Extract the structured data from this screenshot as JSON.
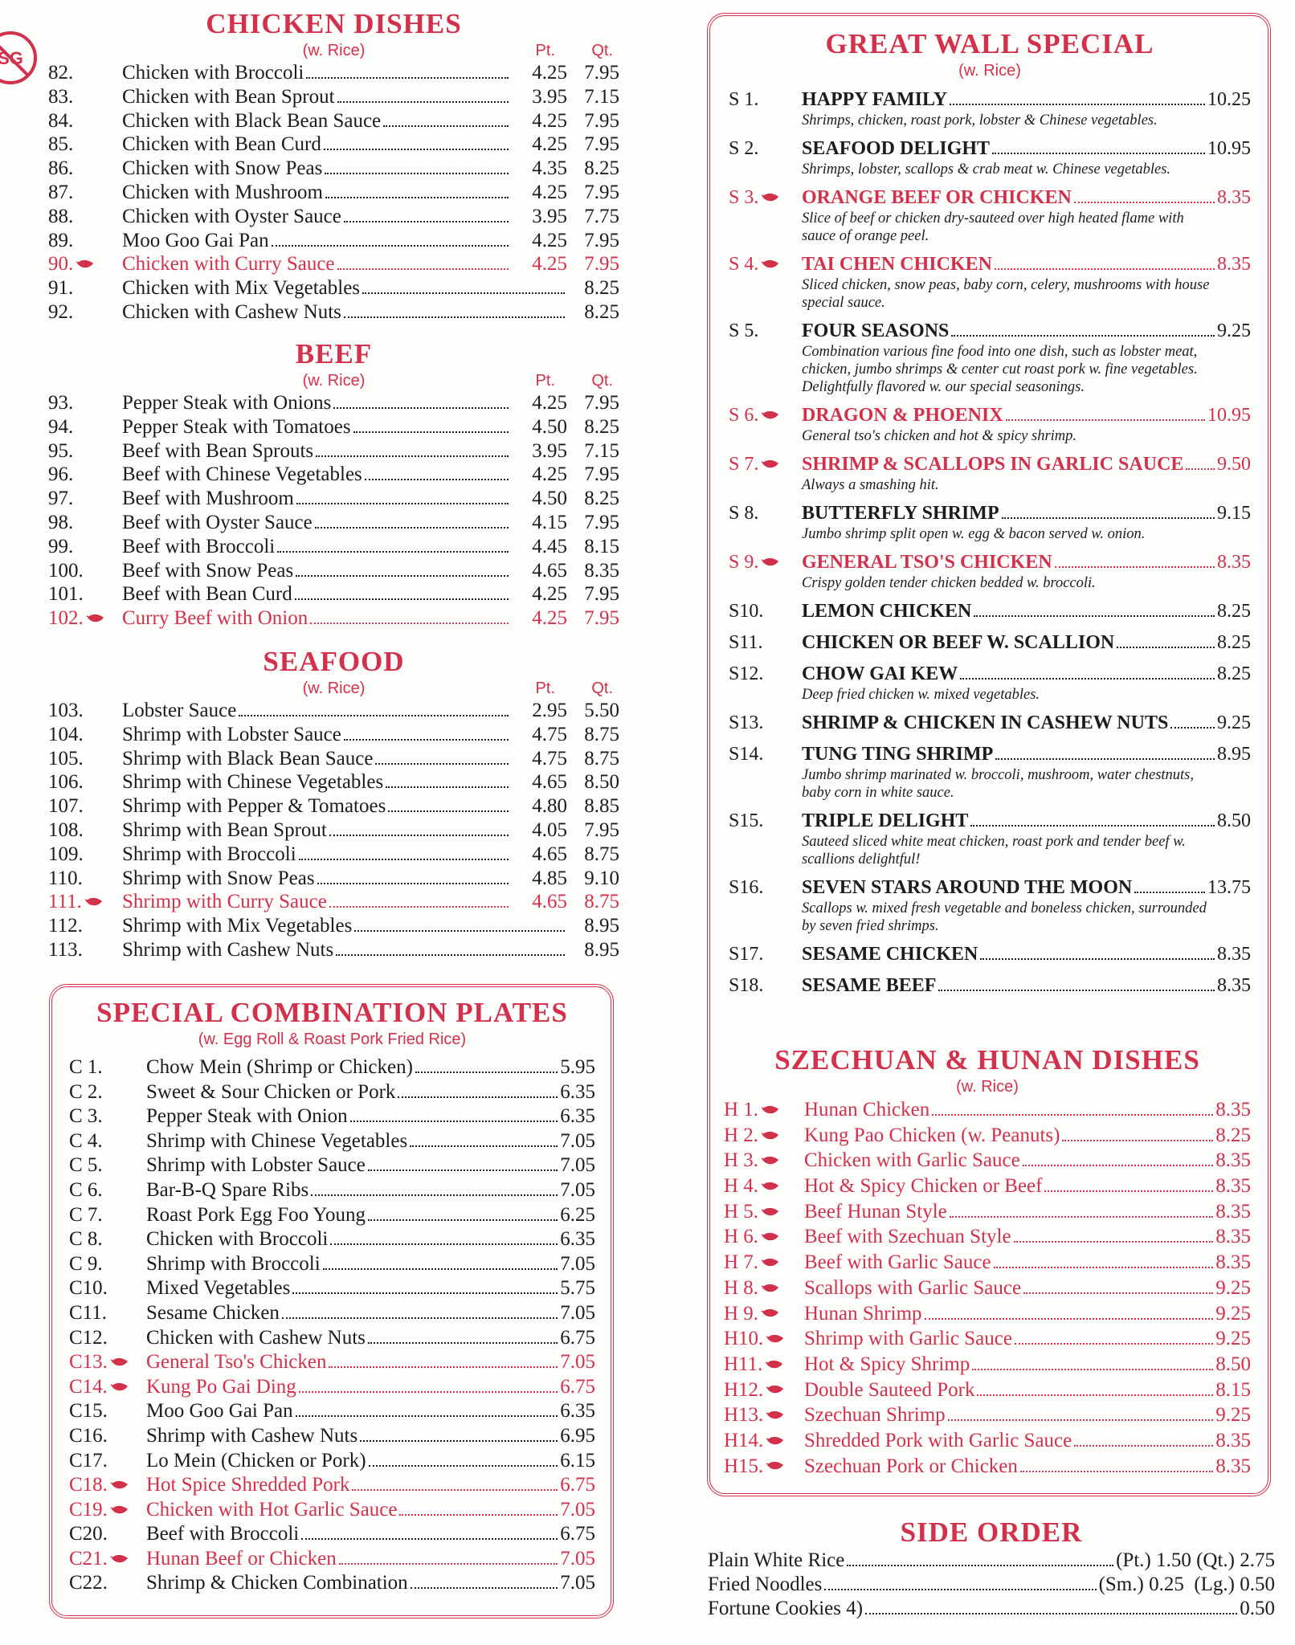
{
  "logo": "SG",
  "left": [
    {
      "title": "CHICKEN DISHES",
      "note": "(w. Rice)",
      "headers": [
        "Pt.",
        "Qt."
      ],
      "items": [
        {
          "num": "82.",
          "name": "Chicken with Broccoli",
          "prices": [
            "4.25",
            "7.95"
          ]
        },
        {
          "num": "83.",
          "name": "Chicken with Bean Sprout",
          "prices": [
            "3.95",
            "7.15"
          ]
        },
        {
          "num": "84.",
          "name": "Chicken with Black Bean Sauce",
          "prices": [
            "4.25",
            "7.95"
          ]
        },
        {
          "num": "85.",
          "name": "Chicken with Bean Curd",
          "prices": [
            "4.25",
            "7.95"
          ]
        },
        {
          "num": "86.",
          "name": "Chicken with Snow Peas",
          "prices": [
            "4.35",
            "8.25"
          ]
        },
        {
          "num": "87.",
          "name": "Chicken with Mushroom",
          "prices": [
            "4.25",
            "7.95"
          ]
        },
        {
          "num": "88.",
          "name": "Chicken with Oyster Sauce",
          "prices": [
            "3.95",
            "7.75"
          ]
        },
        {
          "num": "89.",
          "name": "Moo Goo Gai Pan",
          "prices": [
            "4.25",
            "7.95"
          ]
        },
        {
          "num": "90.",
          "name": "Chicken with Curry Sauce",
          "prices": [
            "4.25",
            "7.95"
          ],
          "spicy": true
        },
        {
          "num": "91.",
          "name": "Chicken with Mix Vegetables",
          "prices": [
            "8.25"
          ]
        },
        {
          "num": "92.",
          "name": "Chicken with Cashew Nuts",
          "prices": [
            "8.25"
          ]
        }
      ]
    },
    {
      "title": "BEEF",
      "note": "(w. Rice)",
      "headers": [
        "Pt.",
        "Qt."
      ],
      "items": [
        {
          "num": "93.",
          "name": "Pepper Steak with Onions",
          "prices": [
            "4.25",
            "7.95"
          ]
        },
        {
          "num": "94.",
          "name": "Pepper Steak with Tomatoes",
          "prices": [
            "4.50",
            "8.25"
          ]
        },
        {
          "num": "95.",
          "name": "Beef with Bean Sprouts",
          "prices": [
            "3.95",
            "7.15"
          ]
        },
        {
          "num": "96.",
          "name": "Beef with Chinese Vegetables",
          "prices": [
            "4.25",
            "7.95"
          ]
        },
        {
          "num": "97.",
          "name": "Beef with Mushroom",
          "prices": [
            "4.50",
            "8.25"
          ]
        },
        {
          "num": "98.",
          "name": "Beef with Oyster Sauce",
          "prices": [
            "4.15",
            "7.95"
          ]
        },
        {
          "num": "99.",
          "name": "Beef with Broccoli",
          "prices": [
            "4.45",
            "8.15"
          ]
        },
        {
          "num": "100.",
          "name": "Beef with Snow Peas",
          "prices": [
            "4.65",
            "8.35"
          ]
        },
        {
          "num": "101.",
          "name": "Beef with Bean Curd",
          "prices": [
            "4.25",
            "7.95"
          ]
        },
        {
          "num": "102.",
          "name": "Curry Beef with Onion",
          "prices": [
            "4.25",
            "7.95"
          ],
          "spicy": true
        }
      ]
    },
    {
      "title": "SEAFOOD",
      "note": "(w. Rice)",
      "headers": [
        "Pt.",
        "Qt."
      ],
      "items": [
        {
          "num": "103.",
          "name": "Lobster Sauce",
          "prices": [
            "2.95",
            "5.50"
          ]
        },
        {
          "num": "104.",
          "name": "Shrimp with Lobster Sauce",
          "prices": [
            "4.75",
            "8.75"
          ]
        },
        {
          "num": "105.",
          "name": "Shrimp with Black Bean Sauce",
          "prices": [
            "4.75",
            "8.75"
          ]
        },
        {
          "num": "106.",
          "name": "Shrimp with Chinese Vegetables",
          "prices": [
            "4.65",
            "8.50"
          ]
        },
        {
          "num": "107.",
          "name": "Shrimp with Pepper & Tomatoes",
          "prices": [
            "4.80",
            "8.85"
          ]
        },
        {
          "num": "108.",
          "name": "Shrimp with Bean Sprout",
          "prices": [
            "4.05",
            "7.95"
          ]
        },
        {
          "num": "109.",
          "name": "Shrimp with Broccoli",
          "prices": [
            "4.65",
            "8.75"
          ]
        },
        {
          "num": "110.",
          "name": "Shrimp with Snow Peas",
          "prices": [
            "4.85",
            "9.10"
          ]
        },
        {
          "num": "111.",
          "name": "Shrimp with Curry Sauce",
          "prices": [
            "4.65",
            "8.75"
          ],
          "spicy": true
        },
        {
          "num": "112.",
          "name": "Shrimp with Mix Vegetables",
          "prices": [
            "8.95"
          ]
        },
        {
          "num": "113.",
          "name": "Shrimp with Cashew Nuts",
          "prices": [
            "8.95"
          ]
        }
      ]
    }
  ],
  "combo": {
    "title": "SPECIAL COMBINATION PLATES",
    "note": "(w. Egg Roll & Roast Pork Fried Rice)",
    "items": [
      {
        "num": "C 1.",
        "name": "Chow Mein (Shrimp or Chicken)",
        "price": "5.95"
      },
      {
        "num": "C 2.",
        "name": "Sweet & Sour Chicken or Pork",
        "price": "6.35"
      },
      {
        "num": "C 3.",
        "name": "Pepper Steak with Onion",
        "price": "6.35"
      },
      {
        "num": "C 4.",
        "name": "Shrimp with Chinese Vegetables",
        "price": "7.05"
      },
      {
        "num": "C 5.",
        "name": "Shrimp with Lobster Sauce",
        "price": "7.05"
      },
      {
        "num": "C 6.",
        "name": "Bar-B-Q Spare Ribs",
        "price": "7.05"
      },
      {
        "num": "C 7.",
        "name": "Roast Pork Egg Foo Young",
        "price": "6.25"
      },
      {
        "num": "C 8.",
        "name": "Chicken with Broccoli",
        "price": "6.35"
      },
      {
        "num": "C 9.",
        "name": "Shrimp with Broccoli",
        "price": "7.05"
      },
      {
        "num": "C10.",
        "name": "Mixed Vegetables",
        "price": "5.75"
      },
      {
        "num": "C11.",
        "name": "Sesame Chicken",
        "price": "7.05"
      },
      {
        "num": "C12.",
        "name": "Chicken with Cashew Nuts",
        "price": "6.75"
      },
      {
        "num": "C13.",
        "name": "General Tso's Chicken",
        "price": "7.05",
        "spicy": true
      },
      {
        "num": "C14.",
        "name": "Kung Po Gai Ding",
        "price": "6.75",
        "spicy": true
      },
      {
        "num": "C15.",
        "name": "Moo Goo Gai Pan",
        "price": "6.35"
      },
      {
        "num": "C16.",
        "name": "Shrimp with Cashew Nuts",
        "price": "6.95"
      },
      {
        "num": "C17.",
        "name": "Lo Mein (Chicken or Pork)",
        "price": "6.15"
      },
      {
        "num": "C18.",
        "name": "Hot Spice Shredded Pork",
        "price": "6.75",
        "spicy": true
      },
      {
        "num": "C19.",
        "name": "Chicken with Hot Garlic Sauce",
        "price": "7.05",
        "spicy": true
      },
      {
        "num": "C20.",
        "name": "Beef with Broccoli",
        "price": "6.75"
      },
      {
        "num": "C21.",
        "name": "Hunan Beef or Chicken",
        "price": "7.05",
        "spicy": true
      },
      {
        "num": "C22.",
        "name": "Shrimp & Chicken Combination",
        "price": "7.05"
      }
    ]
  },
  "special": {
    "title": "GREAT WALL SPECIAL",
    "note": "(w. Rice)",
    "items": [
      {
        "num": "S 1.",
        "name": "HAPPY FAMILY",
        "price": "10.25",
        "desc": "Shrimps, chicken, roast pork, lobster & Chinese vegetables."
      },
      {
        "num": "S 2.",
        "name": "SEAFOOD DELIGHT",
        "price": "10.95",
        "desc": "Shrimps, lobster, scallops & crab meat w. Chinese vegetables."
      },
      {
        "num": "S 3.",
        "name": "ORANGE BEEF OR CHICKEN",
        "price": "8.35",
        "desc": "Slice of beef or chicken dry-sauteed over high heated flame with sauce of orange peel.",
        "spicy": true
      },
      {
        "num": "S 4.",
        "name": "TAI CHEN CHICKEN",
        "price": "8.35",
        "desc": "Sliced chicken, snow peas, baby corn, celery, mushrooms with house special sauce.",
        "spicy": true
      },
      {
        "num": "S 5.",
        "name": "FOUR SEASONS",
        "price": "9.25",
        "desc": "Combination various fine food into one dish, such as lobster meat, chicken, jumbo shrimps & center cut roast pork w. fine vegetables. Delightfully flavored w. our special seasonings."
      },
      {
        "num": "S 6.",
        "name": "DRAGON & PHOENIX",
        "price": "10.95",
        "desc": "General tso's chicken and hot & spicy shrimp.",
        "spicy": true
      },
      {
        "num": "S 7.",
        "name": "SHRIMP & SCALLOPS IN GARLIC SAUCE",
        "price": "9.50",
        "desc": "Always a smashing hit.",
        "spicy": true
      },
      {
        "num": "S 8.",
        "name": "BUTTERFLY SHRIMP",
        "price": "9.15",
        "desc": "Jumbo shrimp split open w. egg & bacon served w. onion."
      },
      {
        "num": "S 9.",
        "name": "GENERAL TSO'S CHICKEN",
        "price": "8.35",
        "desc": "Crispy golden tender chicken bedded w. broccoli.",
        "spicy": true
      },
      {
        "num": "S10.",
        "name": "LEMON CHICKEN",
        "price": "8.25"
      },
      {
        "num": "S11.",
        "name": "CHICKEN OR BEEF W. SCALLION",
        "price": "8.25"
      },
      {
        "num": "S12.",
        "name": "CHOW GAI KEW",
        "price": "8.25",
        "desc": "Deep fried chicken w. mixed vegetables."
      },
      {
        "num": "S13.",
        "name": "SHRIMP & CHICKEN IN CASHEW NUTS",
        "price": "9.25"
      },
      {
        "num": "S14.",
        "name": "TUNG TING SHRIMP",
        "price": "8.95",
        "desc": "Jumbo shrimp marinated w. broccoli, mushroom, water chestnuts, baby corn in white sauce."
      },
      {
        "num": "S15.",
        "name": "TRIPLE DELIGHT",
        "price": "8.50",
        "desc": "Sauteed sliced white meat chicken, roast pork and tender beef w. scallions delightful!"
      },
      {
        "num": "S16.",
        "name": "SEVEN STARS AROUND THE MOON",
        "price": "13.75",
        "desc": "Scallops w. mixed fresh vegetable and boneless chicken, surrounded by seven fried shrimps."
      },
      {
        "num": "S17.",
        "name": "SESAME CHICKEN",
        "price": "8.35"
      },
      {
        "num": "S18.",
        "name": "SESAME BEEF",
        "price": "8.35"
      }
    ]
  },
  "szechuan": {
    "title": "SZECHUAN & HUNAN DISHES",
    "note": "(w. Rice)",
    "spicy": true,
    "items": [
      {
        "num": "H 1.",
        "name": "Hunan Chicken",
        "price": "8.35"
      },
      {
        "num": "H 2.",
        "name": "Kung Pao Chicken (w. Peanuts)",
        "price": "8.25"
      },
      {
        "num": "H 3.",
        "name": "Chicken with Garlic Sauce",
        "price": "8.35"
      },
      {
        "num": "H 4.",
        "name": "Hot & Spicy Chicken or Beef",
        "price": "8.35"
      },
      {
        "num": "H 5.",
        "name": "Beef Hunan Style",
        "price": "8.35"
      },
      {
        "num": "H 6.",
        "name": "Beef with Szechuan Style",
        "price": "8.35"
      },
      {
        "num": "H 7.",
        "name": "Beef with Garlic Sauce",
        "price": "8.35"
      },
      {
        "num": "H 8.",
        "name": "Scallops with Garlic Sauce",
        "price": "9.25"
      },
      {
        "num": "H 9.",
        "name": "Hunan Shrimp",
        "price": "9.25"
      },
      {
        "num": "H10.",
        "name": "Shrimp with Garlic Sauce",
        "price": "9.25"
      },
      {
        "num": "H11.",
        "name": "Hot & Spicy Shrimp",
        "price": "8.50"
      },
      {
        "num": "H12.",
        "name": "Double Sauteed Pork",
        "price": "8.15"
      },
      {
        "num": "H13.",
        "name": "Szechuan Shrimp",
        "price": "9.25"
      },
      {
        "num": "H14.",
        "name": "Shredded Pork with Garlic Sauce",
        "price": "8.35"
      },
      {
        "num": "H15.",
        "name": "Szechuan Pork or Chicken",
        "price": "8.35"
      }
    ]
  },
  "side": {
    "title": "SIDE ORDER",
    "items": [
      {
        "name": "Plain White Rice",
        "price": "(Pt.) 1.50 (Qt.) 2.75"
      },
      {
        "name": "Fried Noodles",
        "price": "(Sm.) 0.25  (Lg.) 0.50"
      },
      {
        "name": "Fortune Cookies 4)",
        "price": "0.50"
      }
    ]
  }
}
